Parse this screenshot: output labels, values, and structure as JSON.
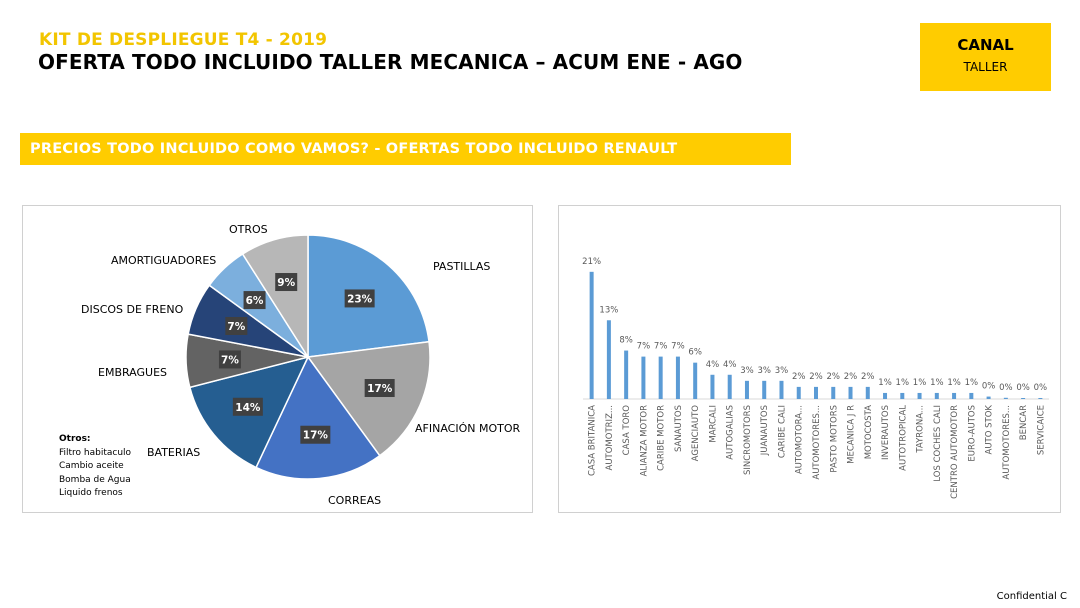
{
  "header": {
    "kit_title": "KIT DE DESPLIEGUE T4 - 2019",
    "main_title": "OFERTA TODO INCLUIDO TALLER MECANICA – ACUM ENE - AGO"
  },
  "canal": {
    "title": "CANAL",
    "subtitle": "TALLER"
  },
  "section": {
    "title": "PRECIOS TODO INCLUIDO COMO VAMOS? - OFERTAS TODO INCLUIDO RENAULT"
  },
  "pie_note": {
    "heading": "Otros:",
    "items": [
      "Filtro habitaculo",
      "Cambio aceite",
      "Bomba de Agua",
      "Liquido frenos"
    ]
  },
  "footer": {
    "label": "Confidential C"
  },
  "chart_data": [
    {
      "type": "pie",
      "slices": [
        {
          "label": "PASTILLAS",
          "value": 23,
          "data_label": "23%",
          "color": "#5b9bd5"
        },
        {
          "label": "AFINACIÓN MOTOR",
          "value": 17,
          "data_label": "17%",
          "color": "#a5a5a5"
        },
        {
          "label": "CORREAS",
          "value": 17,
          "data_label": "17%",
          "color": "#4472c4"
        },
        {
          "label": "BATERIAS",
          "value": 14,
          "data_label": "14%",
          "color": "#255e91"
        },
        {
          "label": "EMBRAGUES",
          "value": 7,
          "data_label": "7%",
          "color": "#636363"
        },
        {
          "label": "DISCOS DE FRENO",
          "value": 7,
          "data_label": "7%",
          "color": "#264478"
        },
        {
          "label": "AMORTIGUADORES",
          "value": 6,
          "data_label": "6%",
          "color": "#7cafdd"
        },
        {
          "label": "OTROS",
          "value": 9,
          "data_label": "9%",
          "color": "#b7b7b7"
        }
      ]
    },
    {
      "type": "bar",
      "color": "#5b9bd5",
      "categories": [
        "CASA BRITANICA",
        "AUTOMOTRIZ...",
        "CASA TORO",
        "ALIANZA MOTOR",
        "CARIBE MOTOR",
        "SANAUTOS",
        "AGENCIAUTO",
        "MARCALI",
        "AUTOGALIAS",
        "SINCROMOTORS",
        "JUANAUTOS",
        "CARIBE CALI",
        "AUTOMOTORA...",
        "AUTOMOTORES...",
        "PASTO MOTORS",
        "MECANICA J R",
        "MOTOCOSTA",
        "INVERAUTOS",
        "AUTOTROPICAL",
        "TAYRONA...",
        "LOS COCHES CALI",
        "CENTRO AUTOMOTOR",
        "EURO-AUTOS",
        "AUTO STOK",
        "AUTOMOTORES...",
        "BENCAR",
        "SERVICAICE"
      ],
      "values": [
        21,
        13,
        8,
        7,
        7,
        7,
        6,
        4,
        4,
        3,
        3,
        3,
        2,
        2,
        2,
        2,
        2,
        1,
        1,
        1,
        1,
        1,
        1,
        0.4,
        0.2,
        0.15,
        0.1
      ],
      "data_labels": [
        "21%",
        "13%",
        "8%",
        "7%",
        "7%",
        "7%",
        "6%",
        "4%",
        "4%",
        "3%",
        "3%",
        "3%",
        "2%",
        "2%",
        "2%",
        "2%",
        "2%",
        "1%",
        "1%",
        "1%",
        "1%",
        "1%",
        "1%",
        "0%",
        "0%",
        "0%",
        "0%"
      ],
      "ylim": [
        0,
        24
      ],
      "grid": false
    }
  ]
}
